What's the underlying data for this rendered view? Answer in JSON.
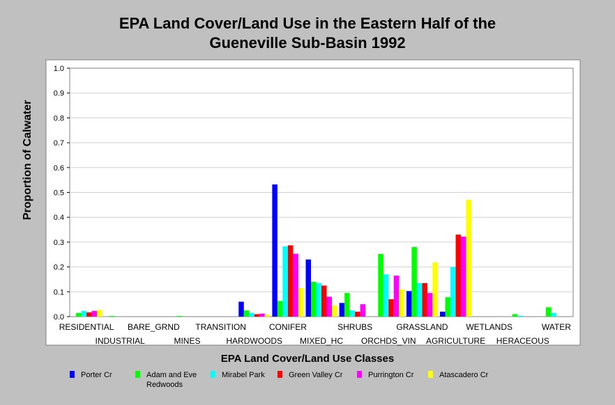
{
  "chart_data": {
    "type": "bar",
    "title_lines": [
      "EPA Land Cover/Land Use in the Eastern Half of the",
      "Gueneville Sub-Basin 1992"
    ],
    "xlabel": "EPA Land Cover/Land Use Classes",
    "ylabel": "Proportion of Calwater",
    "ylim": [
      0,
      1.0
    ],
    "yticks": [
      "0.0",
      "0.1",
      "0.2",
      "0.3",
      "0.4",
      "0.5",
      "0.6",
      "0.7",
      "0.8",
      "0.9",
      "1.0"
    ],
    "grid": true,
    "legend_placement": "bottom",
    "categories": [
      "RESIDENTIAL",
      "INDUSTRIAL",
      "BARE_GRND",
      "MINES",
      "TRANSITION",
      "HARDWOODS",
      "CONIFER",
      "MIXED_HC",
      "SHRUBS",
      "ORCHDS_VIN",
      "GRASSLAND",
      "AGRICULTURE",
      "WETLANDS",
      "HERACEOUS",
      "WATER"
    ],
    "series": [
      {
        "name": "Porter Cr",
        "color": "#0000ff",
        "values": [
          0.0,
          0.0,
          0.0,
          0.0,
          0.0,
          0.06,
          0.532,
          0.23,
          0.055,
          0.0,
          0.103,
          0.02,
          0.0,
          0.0,
          0.0
        ]
      },
      {
        "name": "Adam and Eve Redwoods",
        "color": "#00ff00",
        "values": [
          0.015,
          0.003,
          0.0,
          0.003,
          0.0,
          0.025,
          0.063,
          0.14,
          0.095,
          0.252,
          0.28,
          0.078,
          0.0,
          0.01,
          0.038
        ]
      },
      {
        "name": "Mirabel Park",
        "color": "#00ffff",
        "values": [
          0.023,
          0.0,
          0.0,
          0.0,
          0.0,
          0.015,
          0.283,
          0.135,
          0.025,
          0.17,
          0.135,
          0.2,
          0.0,
          0.004,
          0.015
        ]
      },
      {
        "name": "Green Valley Cr",
        "color": "#ff0000",
        "values": [
          0.017,
          0.0,
          0.0,
          0.0,
          0.0,
          0.01,
          0.287,
          0.125,
          0.02,
          0.07,
          0.135,
          0.33,
          0.0,
          0.0,
          0.0
        ]
      },
      {
        "name": "Purrington Cr",
        "color": "#ff00ff",
        "values": [
          0.023,
          0.0,
          0.0,
          0.0,
          0.0,
          0.012,
          0.253,
          0.08,
          0.05,
          0.165,
          0.095,
          0.322,
          0.0,
          0.0,
          0.0
        ]
      },
      {
        "name": "Atascadero Cr",
        "color": "#ffff00",
        "values": [
          0.027,
          0.0,
          0.0,
          0.0,
          0.0,
          0.008,
          0.115,
          0.045,
          0.0,
          0.11,
          0.218,
          0.47,
          0.0,
          0.0,
          0.0
        ]
      }
    ]
  }
}
